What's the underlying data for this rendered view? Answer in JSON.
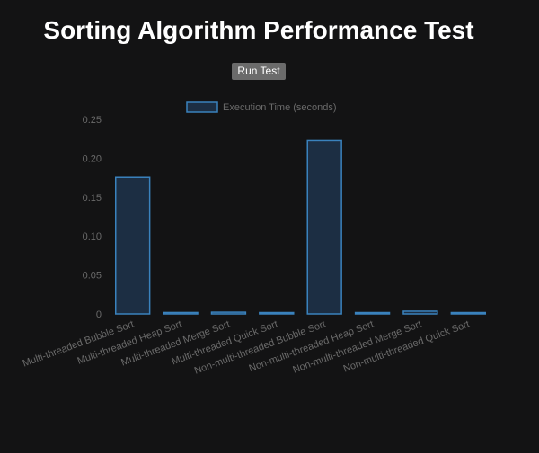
{
  "page": {
    "title": "Sorting Algorithm Performance Test",
    "run_button_label": "Run Test"
  },
  "colors": {
    "background": "#131314",
    "bar_fill": "#1c2e43",
    "bar_stroke": "#3a82bd",
    "axis_text": "#6a6a6a",
    "legend_text": "#6a6a6a"
  },
  "chart_data": {
    "type": "bar",
    "categories": [
      "Multi-threaded Bubble Sort",
      "Multi-threaded Heap Sort",
      "Multi-threaded Merge Sort",
      "Multi-threaded Quick Sort",
      "Non-multi-threaded Bubble Sort",
      "Non-multi-threaded Heap Sort",
      "Non-multi-threaded Merge Sort",
      "Non-multi-threaded Quick Sort"
    ],
    "series": [
      {
        "name": "Execution Time (seconds)",
        "values": [
          0.176,
          0.0018,
          0.0022,
          0.0008,
          0.223,
          0.0016,
          0.0035,
          0.0011
        ]
      }
    ],
    "yticks": [
      "0",
      "0.05",
      "0.10",
      "0.15",
      "0.20",
      "0.25"
    ],
    "ylim": [
      0,
      0.25
    ],
    "legend_position": "top",
    "grid": false
  }
}
